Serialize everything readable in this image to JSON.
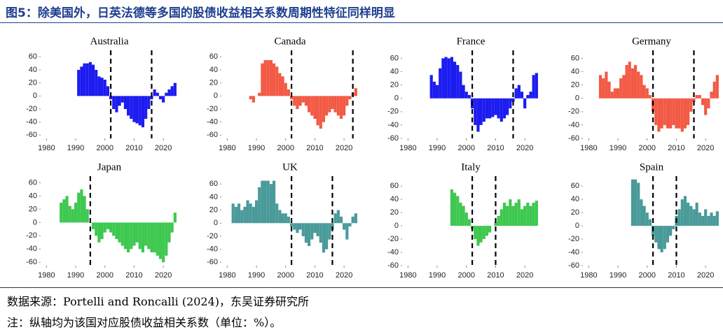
{
  "header": {
    "title": "图5：除美国外，日英法德等多国的股债收益相关系数周期性特征同样明显"
  },
  "notes": [
    "数据来源：Portelli and Roncalli (2024)，东吴证券研究所",
    "注：纵轴均为该国对应股债收益相关系数（单位：%）。"
  ],
  "chart_data": [
    {
      "type": "bar",
      "title": "Australia",
      "color": "#1c1cf0",
      "xlim": [
        1978,
        2025
      ],
      "xticks": [
        1980,
        1990,
        2000,
        2010,
        2020
      ],
      "ylim": [
        -65,
        70
      ],
      "yticks": [
        -60,
        -40,
        -20,
        0,
        20,
        40,
        60
      ],
      "vlines": [
        2002,
        2016
      ],
      "x": [
        1991,
        1992,
        1993,
        1994,
        1995,
        1996,
        1997,
        1998,
        1999,
        2000,
        2001,
        2002,
        2003,
        2004,
        2005,
        2006,
        2007,
        2008,
        2009,
        2010,
        2011,
        2012,
        2013,
        2014,
        2015,
        2016,
        2017,
        2018,
        2019,
        2020,
        2021,
        2022,
        2023,
        2024
      ],
      "values": [
        40,
        45,
        50,
        50,
        52,
        48,
        40,
        30,
        28,
        25,
        15,
        -5,
        -20,
        -25,
        -15,
        -10,
        -20,
        -30,
        -35,
        -40,
        -42,
        -45,
        -48,
        -35,
        -20,
        -5,
        10,
        5,
        -5,
        -10,
        5,
        10,
        15,
        20
      ]
    },
    {
      "type": "bar",
      "title": "Canada",
      "color": "#f25a45",
      "xlim": [
        1978,
        2025
      ],
      "xticks": [
        1980,
        1990,
        2000,
        2010,
        2020
      ],
      "ylim": [
        -65,
        70
      ],
      "yticks": [
        -60,
        -40,
        -20,
        0,
        20,
        40,
        60
      ],
      "vlines": [
        2002,
        2023
      ],
      "x": [
        1988,
        1989,
        1990,
        1991,
        1992,
        1993,
        1994,
        1995,
        1996,
        1997,
        1998,
        1999,
        2000,
        2001,
        2002,
        2003,
        2004,
        2005,
        2006,
        2007,
        2008,
        2009,
        2010,
        2011,
        2012,
        2013,
        2014,
        2015,
        2016,
        2017,
        2018,
        2019,
        2020,
        2021,
        2022,
        2023,
        2024
      ],
      "values": [
        -5,
        -10,
        0,
        5,
        50,
        55,
        55,
        55,
        50,
        45,
        35,
        30,
        20,
        10,
        -5,
        -15,
        -20,
        -15,
        -10,
        -15,
        -25,
        -30,
        -35,
        -45,
        -50,
        -40,
        -30,
        -25,
        -20,
        -25,
        -30,
        -35,
        -30,
        -15,
        -5,
        5,
        12
      ]
    },
    {
      "type": "bar",
      "title": "France",
      "color": "#1c1cf0",
      "xlim": [
        1978,
        2025
      ],
      "xticks": [
        1980,
        1990,
        2000,
        2010,
        2020
      ],
      "ylim": [
        -60,
        72
      ],
      "yticks": [
        -60,
        -40,
        -20,
        0,
        20,
        40,
        60
      ],
      "vlines": [
        2002,
        2016
      ],
      "x": [
        1988,
        1989,
        1990,
        1991,
        1992,
        1993,
        1994,
        1995,
        1996,
        1997,
        1998,
        1999,
        2000,
        2001,
        2002,
        2003,
        2004,
        2005,
        2006,
        2007,
        2008,
        2009,
        2010,
        2011,
        2012,
        2013,
        2014,
        2015,
        2016,
        2017,
        2018,
        2019,
        2020,
        2021,
        2022,
        2023,
        2024
      ],
      "values": [
        35,
        25,
        20,
        45,
        60,
        62,
        60,
        62,
        55,
        50,
        40,
        20,
        10,
        5,
        -15,
        -40,
        -50,
        -40,
        -35,
        -30,
        -30,
        -28,
        -25,
        -30,
        -35,
        -30,
        -25,
        -15,
        -5,
        15,
        20,
        10,
        -15,
        5,
        10,
        35,
        38
      ]
    },
    {
      "type": "bar",
      "title": "Germany",
      "color": "#f25a45",
      "xlim": [
        1978,
        2025
      ],
      "xticks": [
        1980,
        1990,
        2000,
        2010,
        2020
      ],
      "ylim": [
        -60,
        72
      ],
      "yticks": [
        -60,
        -40,
        -20,
        0,
        20,
        40,
        60
      ],
      "vlines": [
        2002,
        2016
      ],
      "x": [
        1984,
        1985,
        1986,
        1987,
        1988,
        1989,
        1990,
        1991,
        1992,
        1993,
        1994,
        1995,
        1996,
        1997,
        1998,
        1999,
        2000,
        2001,
        2002,
        2003,
        2004,
        2005,
        2006,
        2007,
        2008,
        2009,
        2010,
        2011,
        2012,
        2013,
        2014,
        2015,
        2016,
        2017,
        2018,
        2019,
        2020,
        2021,
        2022,
        2023,
        2024
      ],
      "values": [
        35,
        30,
        40,
        25,
        10,
        15,
        15,
        30,
        35,
        50,
        55,
        45,
        50,
        40,
        35,
        20,
        15,
        5,
        -20,
        -40,
        -50,
        -45,
        -40,
        -45,
        -45,
        -40,
        -45,
        -45,
        -50,
        -45,
        -40,
        -20,
        -5,
        5,
        5,
        -10,
        -25,
        -15,
        10,
        25,
        35
      ]
    },
    {
      "type": "bar",
      "title": "Japan",
      "color": "#3ec850",
      "xlim": [
        1978,
        2025
      ],
      "xticks": [
        1980,
        1990,
        2000,
        2010,
        2020
      ],
      "ylim": [
        -65,
        70
      ],
      "yticks": [
        -60,
        -40,
        -20,
        0,
        20,
        40,
        60
      ],
      "vlines": [
        1995
      ],
      "x": [
        1985,
        1986,
        1987,
        1988,
        1989,
        1990,
        1991,
        1992,
        1993,
        1994,
        1995,
        1996,
        1997,
        1998,
        1999,
        2000,
        2001,
        2002,
        2003,
        2004,
        2005,
        2006,
        2007,
        2008,
        2009,
        2010,
        2011,
        2012,
        2013,
        2014,
        2015,
        2016,
        2017,
        2018,
        2019,
        2020,
        2021,
        2022,
        2023,
        2024
      ],
      "values": [
        30,
        35,
        40,
        25,
        20,
        30,
        45,
        50,
        40,
        20,
        0,
        -10,
        -20,
        -30,
        -25,
        -15,
        -10,
        -15,
        -20,
        -25,
        -30,
        -35,
        -40,
        -45,
        -40,
        -35,
        -30,
        -40,
        -45,
        -35,
        -40,
        -45,
        -45,
        -50,
        -55,
        -60,
        -50,
        -30,
        -15,
        15
      ]
    },
    {
      "type": "bar",
      "title": "UK",
      "color": "#4a9a9a",
      "xlim": [
        1978,
        2025
      ],
      "xticks": [
        1980,
        1990,
        2000,
        2010,
        2020
      ],
      "ylim": [
        -65,
        72
      ],
      "yticks": [
        -60,
        -40,
        -20,
        0,
        20,
        40,
        60
      ],
      "vlines": [
        2002,
        2016
      ],
      "x": [
        1982,
        1983,
        1984,
        1985,
        1986,
        1987,
        1988,
        1989,
        1990,
        1991,
        1992,
        1993,
        1994,
        1995,
        1996,
        1997,
        1998,
        1999,
        2000,
        2001,
        2002,
        2003,
        2004,
        2005,
        2006,
        2007,
        2008,
        2009,
        2010,
        2011,
        2012,
        2013,
        2014,
        2015,
        2016,
        2017,
        2018,
        2019,
        2020,
        2021,
        2022,
        2023,
        2024
      ],
      "values": [
        30,
        25,
        30,
        20,
        25,
        35,
        30,
        25,
        35,
        55,
        65,
        65,
        65,
        60,
        65,
        30,
        20,
        15,
        15,
        10,
        -5,
        -10,
        -15,
        -10,
        -20,
        -30,
        -35,
        -25,
        -15,
        -20,
        -30,
        -45,
        -40,
        -25,
        -10,
        15,
        20,
        10,
        -10,
        -25,
        -5,
        10,
        15
      ]
    },
    {
      "type": "bar",
      "title": "Italy",
      "color": "#3ec850",
      "xlim": [
        1978,
        2025
      ],
      "xticks": [
        1980,
        1990,
        2000,
        2010,
        2020
      ],
      "ylim": [
        -60,
        75
      ],
      "yticks": [
        -60,
        -40,
        -20,
        0,
        20,
        40,
        60
      ],
      "vlines": [
        2002,
        2010
      ],
      "x": [
        1995,
        1996,
        1997,
        1998,
        1999,
        2000,
        2001,
        2002,
        2003,
        2004,
        2005,
        2006,
        2007,
        2008,
        2009,
        2010,
        2011,
        2012,
        2013,
        2014,
        2015,
        2016,
        2017,
        2018,
        2019,
        2020,
        2021,
        2022,
        2023,
        2024
      ],
      "values": [
        55,
        50,
        45,
        35,
        30,
        20,
        10,
        -5,
        -20,
        -30,
        -25,
        -20,
        -15,
        -10,
        0,
        5,
        15,
        25,
        35,
        30,
        40,
        30,
        35,
        40,
        25,
        30,
        35,
        30,
        35,
        38
      ]
    },
    {
      "type": "bar",
      "title": "Spain",
      "color": "#4a9a9a",
      "xlim": [
        1978,
        2025
      ],
      "xticks": [
        1980,
        1990,
        2000,
        2010,
        2020
      ],
      "ylim": [
        -60,
        75
      ],
      "yticks": [
        -60,
        -40,
        -20,
        0,
        20,
        40,
        60
      ],
      "vlines": [
        2002,
        2010
      ],
      "x": [
        1995,
        1996,
        1997,
        1998,
        1999,
        2000,
        2001,
        2002,
        2003,
        2004,
        2005,
        2006,
        2007,
        2008,
        2009,
        2010,
        2011,
        2012,
        2013,
        2014,
        2015,
        2016,
        2017,
        2018,
        2019,
        2020,
        2021,
        2022,
        2023,
        2024
      ],
      "values": [
        70,
        70,
        65,
        40,
        30,
        20,
        10,
        -15,
        -25,
        -35,
        -40,
        -35,
        -25,
        -15,
        -5,
        15,
        25,
        40,
        45,
        35,
        30,
        25,
        35,
        20,
        15,
        25,
        15,
        20,
        15,
        22
      ]
    }
  ]
}
